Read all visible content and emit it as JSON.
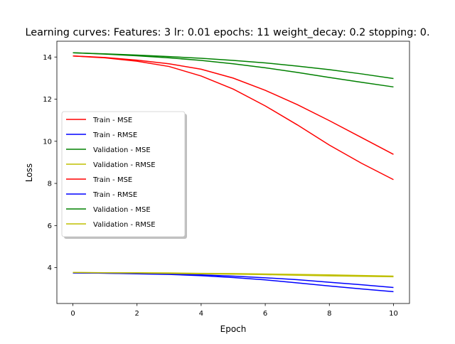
{
  "chart_data": {
    "type": "line",
    "title": "Learning curves: Features: 3 lr: 0.01 epochs: 11 weight_decay: 0.2 stopping: 0.",
    "xlabel": "Epoch",
    "ylabel": "Loss",
    "xlim": [
      -0.5,
      10.5
    ],
    "ylim": [
      2.3,
      14.75
    ],
    "xticks": [
      0,
      2,
      4,
      6,
      8,
      10
    ],
    "yticks": [
      4,
      6,
      8,
      10,
      12,
      14
    ],
    "grid": false,
    "legend_placement": "center-left",
    "x": [
      0,
      1,
      2,
      3,
      4,
      5,
      6,
      7,
      8,
      9,
      10
    ],
    "series": [
      {
        "name": "Train - MSE",
        "color": "#ff0000",
        "values": [
          14.05,
          13.98,
          13.85,
          13.68,
          13.42,
          13.0,
          12.42,
          11.74,
          10.98,
          10.18,
          9.38
        ]
      },
      {
        "name": "Train - RMSE",
        "color": "#0000ff",
        "values": [
          3.75,
          3.74,
          3.72,
          3.7,
          3.66,
          3.6,
          3.52,
          3.43,
          3.31,
          3.19,
          3.06
        ]
      },
      {
        "name": "Validation - MSE",
        "color": "#008000",
        "values": [
          14.2,
          14.15,
          14.09,
          14.02,
          13.94,
          13.84,
          13.72,
          13.57,
          13.4,
          13.2,
          12.98
        ]
      },
      {
        "name": "Validation - RMSE",
        "color": "#bfbf00",
        "values": [
          3.77,
          3.76,
          3.76,
          3.75,
          3.73,
          3.72,
          3.7,
          3.68,
          3.66,
          3.63,
          3.6
        ]
      },
      {
        "name": "Train - MSE",
        "color": "#ff0000",
        "values": [
          14.05,
          13.96,
          13.8,
          13.55,
          13.1,
          12.48,
          11.68,
          10.78,
          9.82,
          8.96,
          8.18
        ]
      },
      {
        "name": "Train - RMSE",
        "color": "#0000ff",
        "values": [
          3.75,
          3.74,
          3.71,
          3.68,
          3.62,
          3.53,
          3.42,
          3.28,
          3.13,
          2.99,
          2.86
        ]
      },
      {
        "name": "Validation - MSE",
        "color": "#008000",
        "values": [
          14.2,
          14.14,
          14.06,
          13.96,
          13.84,
          13.68,
          13.49,
          13.27,
          13.03,
          12.8,
          12.58
        ]
      },
      {
        "name": "Validation - RMSE",
        "color": "#bfbf00",
        "values": [
          3.77,
          3.76,
          3.75,
          3.73,
          3.71,
          3.69,
          3.67,
          3.64,
          3.61,
          3.59,
          3.57
        ]
      }
    ]
  }
}
